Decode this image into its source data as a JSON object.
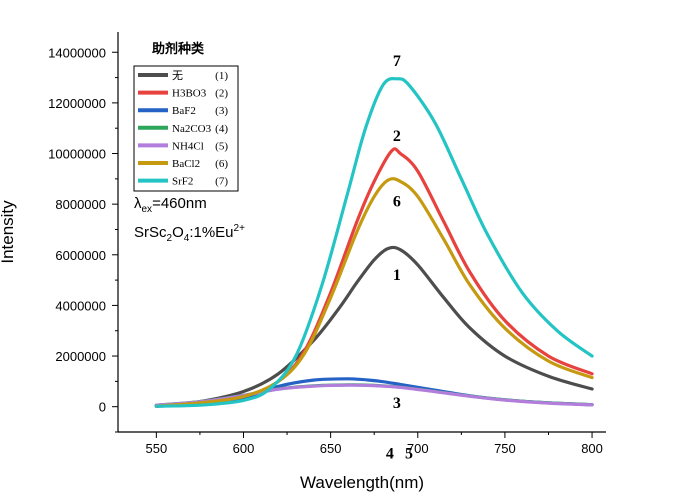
{
  "chart_data": {
    "type": "line",
    "xlabel": "Wavelength(nm)",
    "ylabel": "Intensity",
    "xlim": [
      528,
      808
    ],
    "ylim": [
      -1000000,
      14800000
    ],
    "xticks": [
      550,
      600,
      650,
      700,
      750,
      800
    ],
    "yticks": [
      0,
      2000000,
      4000000,
      6000000,
      8000000,
      10000000,
      12000000,
      14000000
    ],
    "legend": {
      "title": "助剂种类",
      "placement": "top-left"
    },
    "annotations": {
      "excitation": {
        "lambda": "λ",
        "sub": "ex",
        "value": "=460nm"
      },
      "formula": {
        "a": "SrSc",
        "b": "2",
        "c": "O",
        "d": "4",
        "e": ":1%Eu",
        "f": "2+"
      }
    },
    "series": [
      {
        "name": "无",
        "legend_num": "(1)",
        "label": "1",
        "color": "#4d4d4d",
        "x": [
          550,
          575,
          600,
          620,
          640,
          655,
          665,
          675,
          683,
          690,
          700,
          715,
          730,
          750,
          775,
          800
        ],
        "y": [
          30000,
          200000,
          600000,
          1300000,
          2600000,
          3900000,
          4900000,
          5800000,
          6250000,
          6200000,
          5600000,
          4300000,
          3100000,
          2000000,
          1200000,
          700000
        ]
      },
      {
        "name": "H3BO3",
        "legend_num": "(2)",
        "label": "2",
        "color": "#e8423f",
        "x": [
          550,
          575,
          600,
          620,
          635,
          650,
          665,
          675,
          685,
          690,
          700,
          715,
          730,
          750,
          775,
          800
        ],
        "y": [
          20000,
          150000,
          400000,
          1000000,
          2200000,
          4500000,
          7300000,
          8900000,
          10100000,
          10000000,
          9300000,
          7300000,
          5300000,
          3400000,
          2000000,
          1300000
        ]
      },
      {
        "name": "BaF2",
        "legend_num": "(3)",
        "label": "3",
        "color": "#2462c6",
        "x": [
          550,
          575,
          600,
          620,
          640,
          660,
          675,
          690,
          710,
          730,
          750,
          775,
          800
        ],
        "y": [
          20000,
          80000,
          300000,
          800000,
          1050000,
          1100000,
          1030000,
          880000,
          650000,
          430000,
          270000,
          150000,
          80000
        ]
      },
      {
        "name": "Na2CO3",
        "legend_num": "(4)",
        "label": "4",
        "color": "#2ca65a",
        "x": [
          550,
          575,
          600,
          620,
          640,
          660,
          675,
          690,
          710,
          730,
          750,
          775,
          800
        ],
        "y": [
          60000,
          200000,
          450000,
          700000,
          820000,
          860000,
          840000,
          770000,
          600000,
          420000,
          270000,
          150000,
          80000
        ]
      },
      {
        "name": "NH4Cl",
        "legend_num": "(5)",
        "label": "5",
        "color": "#b27ddb",
        "x": [
          550,
          575,
          600,
          620,
          640,
          660,
          675,
          690,
          710,
          730,
          750,
          775,
          800
        ],
        "y": [
          60000,
          190000,
          440000,
          690000,
          810000,
          850000,
          830000,
          760000,
          590000,
          410000,
          260000,
          140000,
          70000
        ]
      },
      {
        "name": "BaCl2",
        "legend_num": "(6)",
        "label": "6",
        "color": "#c69a10",
        "x": [
          550,
          575,
          600,
          620,
          635,
          650,
          665,
          675,
          683,
          690,
          700,
          715,
          730,
          750,
          775,
          800
        ],
        "y": [
          20000,
          150000,
          400000,
          1000000,
          2100000,
          4300000,
          6900000,
          8300000,
          8950000,
          8900000,
          8300000,
          6600000,
          4800000,
          3100000,
          1800000,
          1150000
        ]
      },
      {
        "name": "SrF2",
        "legend_num": "(7)",
        "label": "7",
        "color": "#24c4c4",
        "x": [
          550,
          575,
          600,
          615,
          630,
          645,
          660,
          670,
          680,
          688,
          695,
          710,
          725,
          740,
          760,
          780,
          800
        ],
        "y": [
          20000,
          60000,
          250000,
          700000,
          2000000,
          4800000,
          8500000,
          11000000,
          12700000,
          12950000,
          12700000,
          11200000,
          9000000,
          6800000,
          4500000,
          3000000,
          2000000
        ]
      }
    ]
  }
}
